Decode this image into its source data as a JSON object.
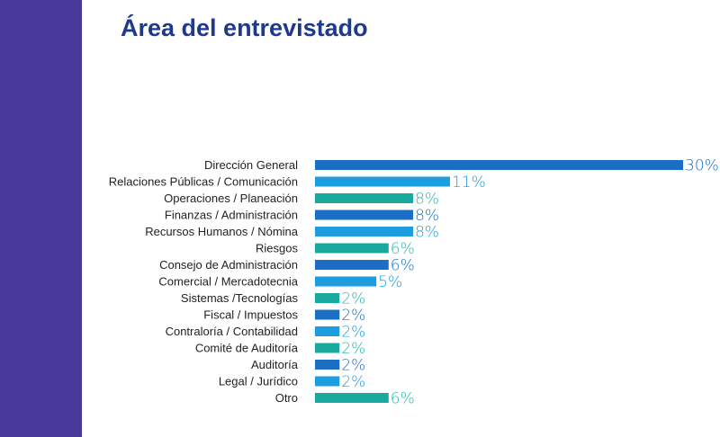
{
  "title": "Área del entrevistado",
  "colors": {
    "band": "#47389a",
    "title": "#1f3a8a"
  },
  "chart_data": {
    "type": "bar",
    "orientation": "horizontal",
    "title": "Área del entrevistado",
    "categories": [
      "Dirección General",
      "Relaciones Públicas / Comunicación",
      "Operaciones / Planeación",
      "Finanzas / Administración",
      "Recursos Humanos / Nómina",
      "Riesgos",
      "Consejo de Administración",
      "Comercial / Mercadotecnia",
      "Sistemas /Tecnologías",
      "Fiscal / Impuestos",
      "Contraloría / Contabilidad",
      "Comité de Auditoría",
      "Auditoría",
      "Legal / Jurídico",
      "Otro"
    ],
    "values": [
      30,
      11,
      8,
      8,
      8,
      6,
      6,
      5,
      2,
      2,
      2,
      2,
      2,
      2,
      6
    ],
    "value_labels": [
      "30%",
      "11%",
      "8%",
      "8%",
      "8%",
      "6%",
      "6%",
      "5%",
      "2%",
      "2%",
      "2%",
      "2%",
      "2%",
      "2%",
      "6%"
    ],
    "bar_colors": [
      "#1a6fc4",
      "#1d9de0",
      "#1aaa9d",
      "#1a6fc4",
      "#1d9de0",
      "#1aaa9d",
      "#1a6fc4",
      "#1d9de0",
      "#1aaa9d",
      "#1a6fc4",
      "#1d9de0",
      "#1aaa9d",
      "#1a6fc4",
      "#1d9de0",
      "#1aaa9d"
    ],
    "label_colors": [
      "#1a6fc4",
      "#1d9de0",
      "#2bb5a8",
      "#1a6fc4",
      "#1d9de0",
      "#2bb5a8",
      "#1a6fc4",
      "#1d9de0",
      "#2bb5a8",
      "#1a6fc4",
      "#1d9de0",
      "#2bb5a8",
      "#1a6fc4",
      "#1d9de0",
      "#2bb5a8"
    ],
    "unit": "%",
    "xlim": [
      0,
      30
    ],
    "grid": false,
    "legend": "none"
  }
}
